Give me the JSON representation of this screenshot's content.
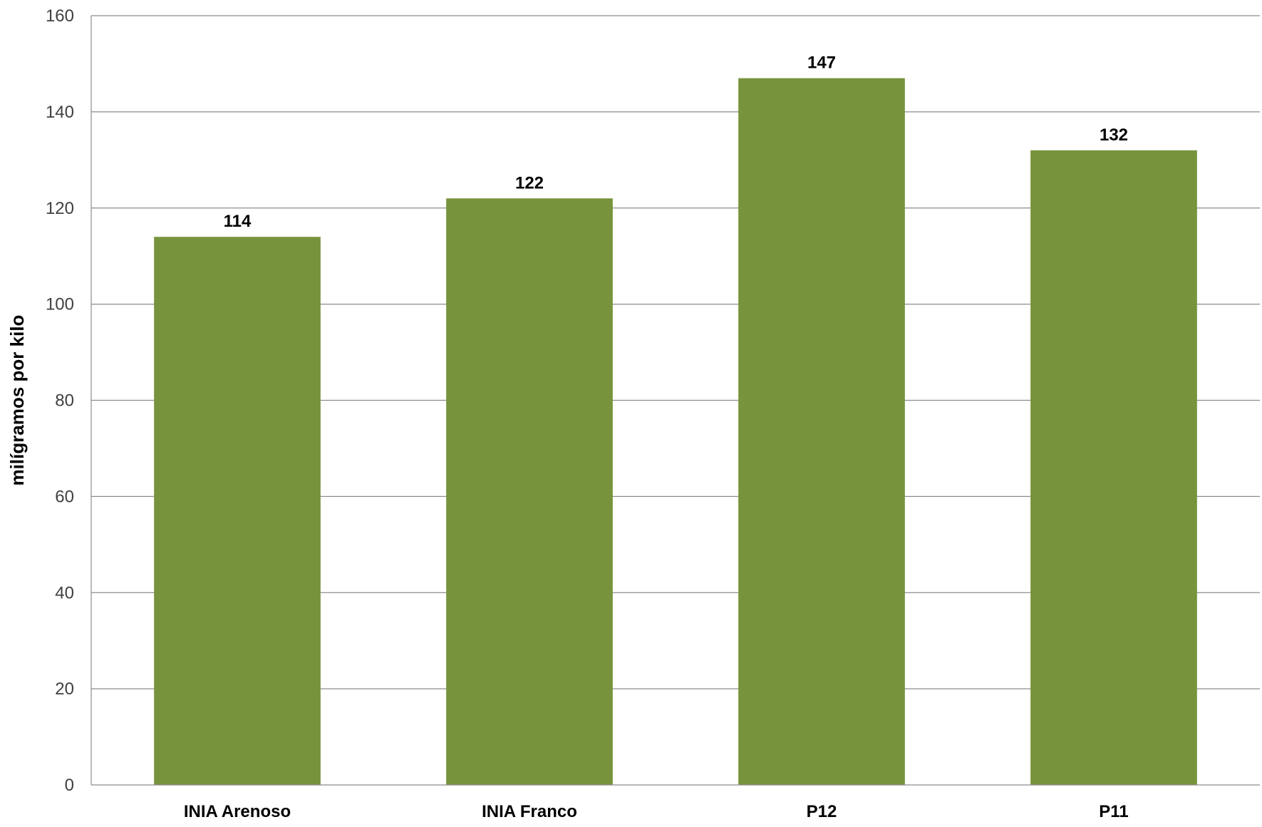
{
  "chart_data": {
    "type": "bar",
    "title": "",
    "xlabel": "",
    "ylabel": "milígramos por kilo",
    "categories": [
      "INIA Arenoso",
      "INIA Franco",
      "P12",
      "P11"
    ],
    "values": [
      114,
      122,
      147,
      132
    ],
    "data_labels": [
      "114",
      "122",
      "147",
      "132"
    ],
    "ylim": [
      0,
      160
    ],
    "yticks": [
      0,
      20,
      40,
      60,
      80,
      100,
      120,
      140,
      160
    ],
    "grid": true,
    "legend": "none",
    "bar_color": "#77933c"
  }
}
